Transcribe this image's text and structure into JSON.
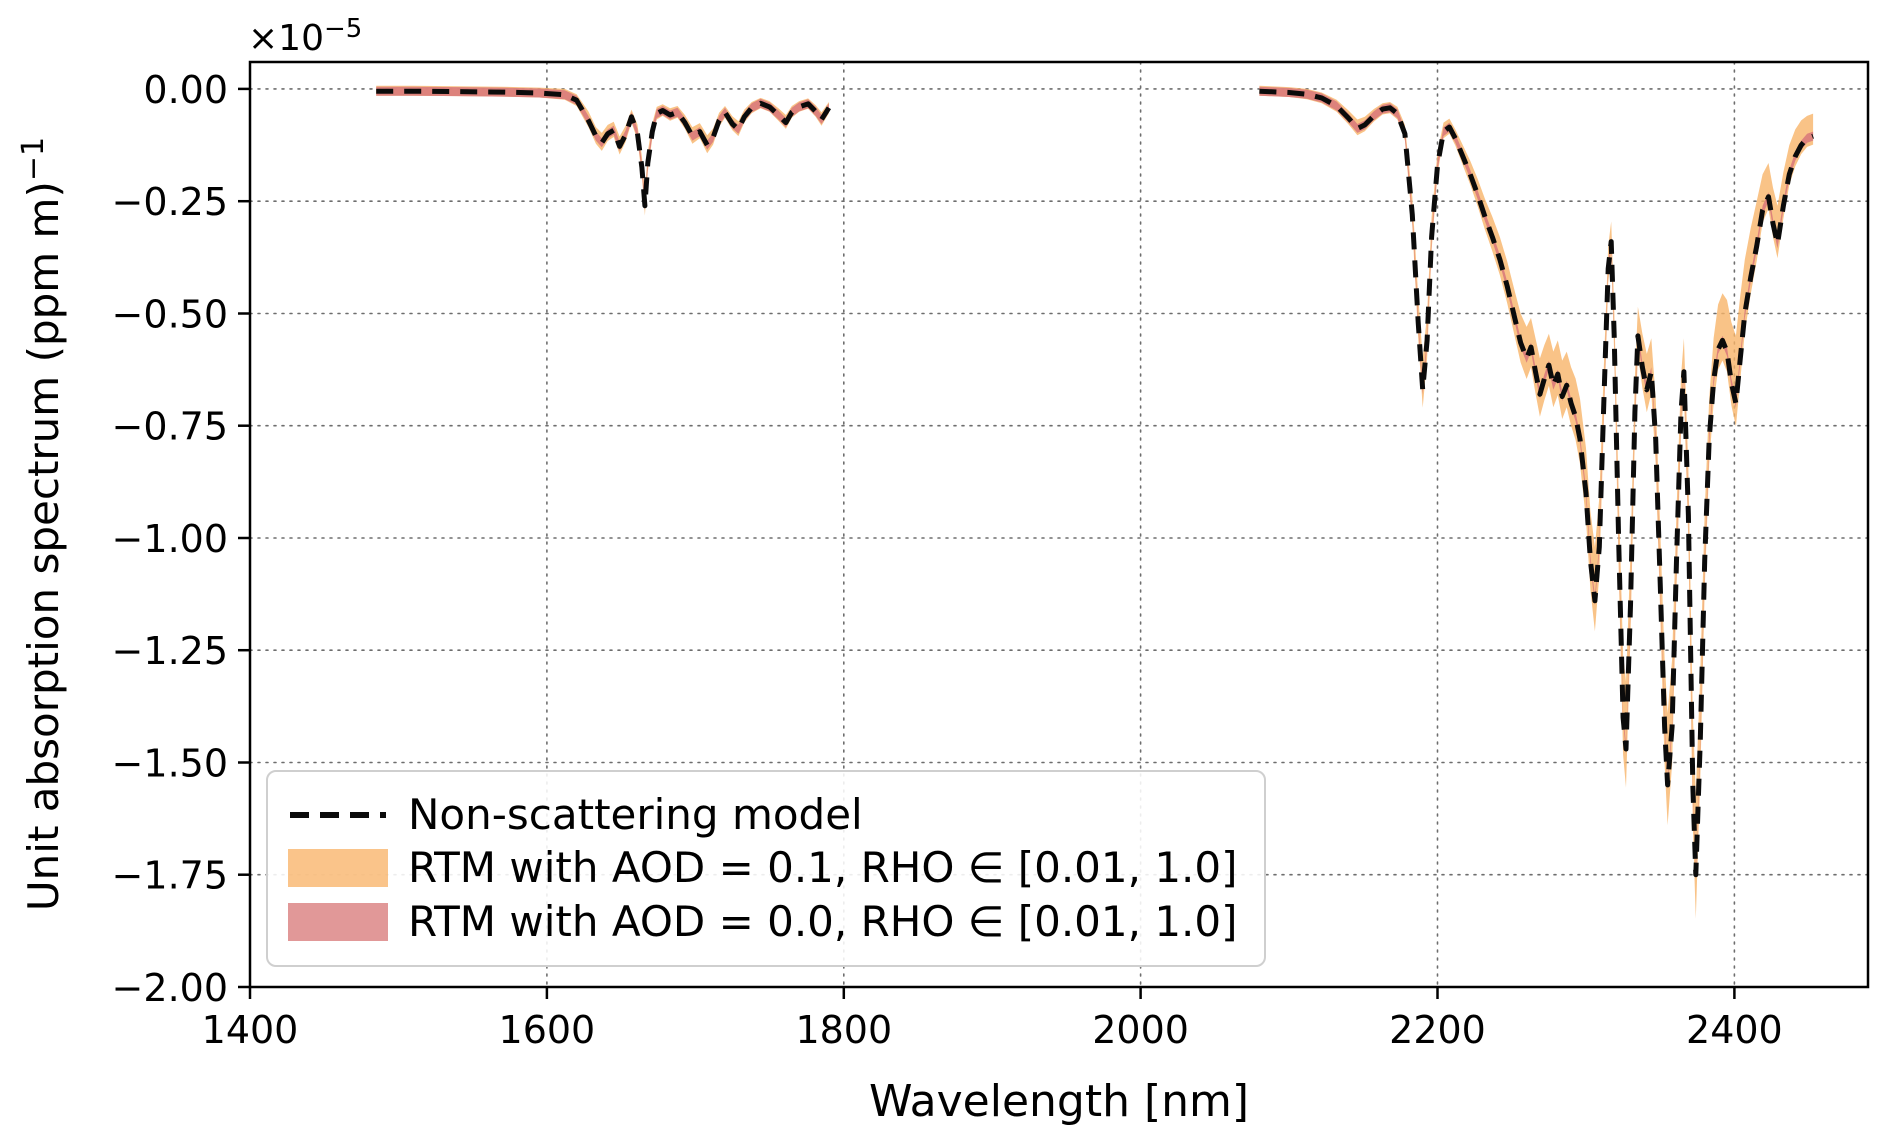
{
  "figure": {
    "y_label": "Unit absorption spectrum (ppm m)",
    "y_label_exp": "−1",
    "x_label": "Wavelength [nm]",
    "offset_base": "×10",
    "offset_exp": "−5"
  },
  "axes": {
    "x": {
      "min": 1400,
      "max": 2490,
      "ticks": [
        1400,
        1600,
        1800,
        2000,
        2200,
        2400
      ]
    },
    "y": {
      "min": -2.0,
      "max": 0.06,
      "ticks": [
        0,
        -0.25,
        -0.5,
        -0.75,
        -1.0,
        -1.25,
        -1.5,
        -1.75,
        -2.0
      ]
    }
  },
  "legend": {
    "items": [
      {
        "label": "Non-scattering model",
        "marker": "dashed-line",
        "color": "#000000"
      },
      {
        "label": "RTM with AOD = 0.1, RHO ∈ [0.01, 1.0]",
        "marker": "band",
        "color": "#f8b469"
      },
      {
        "label": "RTM with AOD = 0.0, RHO ∈ [0.01, 1.0]",
        "marker": "band",
        "color": "#d97b7b"
      }
    ]
  },
  "chart_data": {
    "type": "line",
    "title": "",
    "xlabel": "Wavelength [nm]",
    "ylabel": "Unit absorption spectrum (ppm m)^-1",
    "y_scale_label": "×10^-5",
    "y_scale_factor": 1e-05,
    "xlim": [
      1400,
      2490
    ],
    "ylim": [
      -2.0,
      0.06
    ],
    "grid": "dotted",
    "legend_position": "lower-left",
    "series": [
      {
        "name": "Non-scattering model",
        "type": "dashed-line",
        "color": "#0b0b0b"
      },
      {
        "name": "RTM with AOD = 0.1, RHO ∈ [0.01, 1.0]",
        "type": "band",
        "color": "#f8b469"
      },
      {
        "name": "RTM with AOD = 0.0, RHO ∈ [0.01, 1.0]",
        "type": "band",
        "color": "#d97b7b",
        "halfwidth": 0.01
      }
    ],
    "points_format": "[wavelength_nm, y_center, band01_upper, band01_lower] with y in units of 1e-5",
    "segments": [
      {
        "points": [
          [
            1485,
            -0.005,
            0.007,
            -0.015
          ],
          [
            1510,
            -0.005,
            0.007,
            -0.015
          ],
          [
            1540,
            -0.006,
            0.006,
            -0.016
          ],
          [
            1570,
            -0.007,
            0.005,
            -0.017
          ],
          [
            1595,
            -0.009,
            0.003,
            -0.019
          ],
          [
            1612,
            -0.013,
            0.0,
            -0.024
          ],
          [
            1620,
            -0.025,
            -0.012,
            -0.038
          ],
          [
            1628,
            -0.07,
            -0.05,
            -0.085
          ],
          [
            1633,
            -0.105,
            -0.085,
            -0.122
          ],
          [
            1637,
            -0.12,
            -0.098,
            -0.138
          ],
          [
            1641,
            -0.1,
            -0.08,
            -0.116
          ],
          [
            1645,
            -0.092,
            -0.073,
            -0.107
          ],
          [
            1649,
            -0.128,
            -0.106,
            -0.146
          ],
          [
            1653,
            -0.102,
            -0.082,
            -0.118
          ],
          [
            1657,
            -0.062,
            -0.046,
            -0.075
          ],
          [
            1661,
            -0.098,
            -0.079,
            -0.113
          ],
          [
            1664,
            -0.175,
            -0.15,
            -0.195
          ],
          [
            1666,
            -0.26,
            -0.23,
            -0.282
          ],
          [
            1668,
            -0.165,
            -0.14,
            -0.184
          ],
          [
            1671,
            -0.095,
            -0.076,
            -0.11
          ],
          [
            1674,
            -0.055,
            -0.04,
            -0.068
          ],
          [
            1678,
            -0.048,
            -0.034,
            -0.06
          ],
          [
            1683,
            -0.058,
            -0.043,
            -0.071
          ],
          [
            1688,
            -0.052,
            -0.038,
            -0.064
          ],
          [
            1693,
            -0.075,
            -0.058,
            -0.089
          ],
          [
            1698,
            -0.105,
            -0.085,
            -0.122
          ],
          [
            1703,
            -0.095,
            -0.076,
            -0.11
          ],
          [
            1708,
            -0.125,
            -0.103,
            -0.143
          ],
          [
            1712,
            -0.108,
            -0.088,
            -0.124
          ],
          [
            1716,
            -0.07,
            -0.053,
            -0.084
          ],
          [
            1720,
            -0.052,
            -0.038,
            -0.064
          ],
          [
            1725,
            -0.078,
            -0.061,
            -0.092
          ],
          [
            1729,
            -0.09,
            -0.072,
            -0.105
          ],
          [
            1733,
            -0.062,
            -0.046,
            -0.075
          ],
          [
            1738,
            -0.042,
            -0.029,
            -0.054
          ],
          [
            1744,
            -0.032,
            -0.02,
            -0.043
          ],
          [
            1750,
            -0.04,
            -0.027,
            -0.051
          ],
          [
            1756,
            -0.058,
            -0.043,
            -0.071
          ],
          [
            1761,
            -0.075,
            -0.058,
            -0.089
          ],
          [
            1765,
            -0.052,
            -0.038,
            -0.064
          ],
          [
            1770,
            -0.04,
            -0.027,
            -0.051
          ],
          [
            1776,
            -0.033,
            -0.021,
            -0.044
          ],
          [
            1781,
            -0.05,
            -0.036,
            -0.062
          ],
          [
            1785,
            -0.068,
            -0.052,
            -0.082
          ],
          [
            1790,
            -0.042,
            -0.029,
            -0.054
          ]
        ]
      },
      {
        "points": [
          [
            2080,
            -0.005,
            0.007,
            -0.015
          ],
          [
            2100,
            -0.008,
            0.004,
            -0.018
          ],
          [
            2112,
            -0.012,
            0.0,
            -0.023
          ],
          [
            2122,
            -0.02,
            -0.008,
            -0.032
          ],
          [
            2132,
            -0.038,
            -0.024,
            -0.051
          ],
          [
            2140,
            -0.065,
            -0.048,
            -0.079
          ],
          [
            2146,
            -0.088,
            -0.068,
            -0.103
          ],
          [
            2151,
            -0.08,
            -0.062,
            -0.094
          ],
          [
            2157,
            -0.06,
            -0.045,
            -0.073
          ],
          [
            2163,
            -0.045,
            -0.032,
            -0.057
          ],
          [
            2168,
            -0.042,
            -0.029,
            -0.054
          ],
          [
            2173,
            -0.055,
            -0.04,
            -0.068
          ],
          [
            2178,
            -0.1,
            -0.08,
            -0.115
          ],
          [
            2183,
            -0.28,
            -0.24,
            -0.305
          ],
          [
            2187,
            -0.52,
            -0.46,
            -0.555
          ],
          [
            2190,
            -0.67,
            -0.6,
            -0.71
          ],
          [
            2193,
            -0.56,
            -0.5,
            -0.6
          ],
          [
            2196,
            -0.33,
            -0.285,
            -0.36
          ],
          [
            2200,
            -0.17,
            -0.14,
            -0.19
          ],
          [
            2204,
            -0.095,
            -0.075,
            -0.11
          ],
          [
            2208,
            -0.085,
            -0.066,
            -0.1
          ],
          [
            2212,
            -0.11,
            -0.09,
            -0.126
          ],
          [
            2217,
            -0.15,
            -0.125,
            -0.17
          ],
          [
            2222,
            -0.19,
            -0.16,
            -0.213
          ],
          [
            2227,
            -0.235,
            -0.2,
            -0.261
          ],
          [
            2232,
            -0.285,
            -0.245,
            -0.314
          ],
          [
            2237,
            -0.33,
            -0.285,
            -0.362
          ],
          [
            2242,
            -0.38,
            -0.33,
            -0.415
          ],
          [
            2247,
            -0.44,
            -0.385,
            -0.478
          ],
          [
            2252,
            -0.51,
            -0.45,
            -0.551
          ],
          [
            2256,
            -0.565,
            -0.5,
            -0.609
          ],
          [
            2260,
            -0.6,
            -0.53,
            -0.646
          ],
          [
            2263,
            -0.575,
            -0.51,
            -0.62
          ],
          [
            2266,
            -0.63,
            -0.555,
            -0.678
          ],
          [
            2269,
            -0.68,
            -0.6,
            -0.73
          ],
          [
            2272,
            -0.645,
            -0.57,
            -0.693
          ],
          [
            2275,
            -0.615,
            -0.545,
            -0.661
          ],
          [
            2278,
            -0.66,
            -0.585,
            -0.709
          ],
          [
            2281,
            -0.635,
            -0.56,
            -0.682
          ],
          [
            2284,
            -0.685,
            -0.605,
            -0.735
          ],
          [
            2287,
            -0.66,
            -0.585,
            -0.709
          ],
          [
            2290,
            -0.7,
            -0.62,
            -0.75
          ],
          [
            2293,
            -0.73,
            -0.645,
            -0.782
          ],
          [
            2296,
            -0.78,
            -0.69,
            -0.835
          ],
          [
            2300,
            -0.9,
            -0.8,
            -0.96
          ],
          [
            2303,
            -1.05,
            -0.94,
            -1.115
          ],
          [
            2306,
            -1.14,
            -1.02,
            -1.208
          ],
          [
            2309,
            -1.02,
            -0.91,
            -1.083
          ],
          [
            2312,
            -0.7,
            -0.62,
            -0.75
          ],
          [
            2315,
            -0.4,
            -0.35,
            -0.432
          ],
          [
            2317,
            -0.34,
            -0.295,
            -0.369
          ],
          [
            2319,
            -0.55,
            -0.485,
            -0.592
          ],
          [
            2322,
            -1.0,
            -0.89,
            -1.063
          ],
          [
            2325,
            -1.4,
            -1.26,
            -1.483
          ],
          [
            2327,
            -1.47,
            -1.32,
            -1.556
          ],
          [
            2330,
            -1.15,
            -1.03,
            -1.219
          ],
          [
            2333,
            -0.72,
            -0.64,
            -0.77
          ],
          [
            2335,
            -0.55,
            -0.485,
            -0.592
          ],
          [
            2338,
            -0.62,
            -0.545,
            -0.666
          ],
          [
            2341,
            -0.67,
            -0.59,
            -0.72
          ],
          [
            2344,
            -0.63,
            -0.555,
            -0.678
          ],
          [
            2347,
            -0.78,
            -0.69,
            -0.835
          ],
          [
            2350,
            -1.1,
            -0.98,
            -1.168
          ],
          [
            2353,
            -1.42,
            -1.27,
            -1.504
          ],
          [
            2355,
            -1.55,
            -1.39,
            -1.64
          ],
          [
            2358,
            -1.42,
            -1.27,
            -1.504
          ],
          [
            2361,
            -1.05,
            -0.94,
            -1.115
          ],
          [
            2364,
            -0.72,
            -0.64,
            -0.77
          ],
          [
            2366,
            -0.63,
            -0.555,
            -0.678
          ],
          [
            2369,
            -0.95,
            -0.845,
            -1.013
          ],
          [
            2372,
            -1.55,
            -1.39,
            -1.64
          ],
          [
            2374,
            -1.75,
            -1.57,
            -1.848
          ],
          [
            2377,
            -1.45,
            -1.3,
            -1.535
          ],
          [
            2380,
            -1.05,
            -0.94,
            -1.115
          ],
          [
            2383,
            -0.78,
            -0.69,
            -0.835
          ],
          [
            2386,
            -0.65,
            -0.555,
            -0.7
          ],
          [
            2389,
            -0.58,
            -0.48,
            -0.625
          ],
          [
            2392,
            -0.56,
            -0.455,
            -0.605
          ],
          [
            2395,
            -0.585,
            -0.47,
            -0.63
          ],
          [
            2398,
            -0.655,
            -0.52,
            -0.705
          ],
          [
            2401,
            -0.7,
            -0.55,
            -0.752
          ],
          [
            2404,
            -0.6,
            -0.46,
            -0.648
          ],
          [
            2407,
            -0.5,
            -0.38,
            -0.542
          ],
          [
            2411,
            -0.42,
            -0.31,
            -0.457
          ],
          [
            2415,
            -0.35,
            -0.25,
            -0.383
          ],
          [
            2419,
            -0.27,
            -0.19,
            -0.298
          ],
          [
            2423,
            -0.24,
            -0.165,
            -0.267
          ],
          [
            2426,
            -0.3,
            -0.22,
            -0.33
          ],
          [
            2429,
            -0.345,
            -0.26,
            -0.377
          ],
          [
            2433,
            -0.26,
            -0.185,
            -0.288
          ],
          [
            2437,
            -0.19,
            -0.125,
            -0.214
          ],
          [
            2441,
            -0.15,
            -0.09,
            -0.172
          ],
          [
            2445,
            -0.125,
            -0.07,
            -0.145
          ],
          [
            2449,
            -0.11,
            -0.06,
            -0.129
          ],
          [
            2453,
            -0.105,
            -0.055,
            -0.124
          ]
        ]
      }
    ]
  }
}
